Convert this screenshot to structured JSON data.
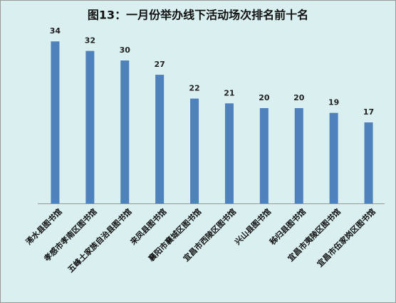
{
  "chart_data": {
    "type": "bar",
    "title": "图13：一月份举办线下活动场次排名前十名",
    "categories": [
      "浠水县图书馆",
      "孝感市孝南区图书馆",
      "五峰土家族自治县图书馆",
      "来凤县图书馆",
      "襄阳市襄城区图书馆",
      "宜昌市西陵区图书馆",
      "兴山县图书馆",
      "秭归县图书馆",
      "宜昌市夷陵区图书馆",
      "宜昌市伍家岗区图书馆"
    ],
    "values": [
      34,
      32,
      30,
      27,
      22,
      21,
      20,
      20,
      19,
      17
    ],
    "color": "#4f81bd"
  }
}
